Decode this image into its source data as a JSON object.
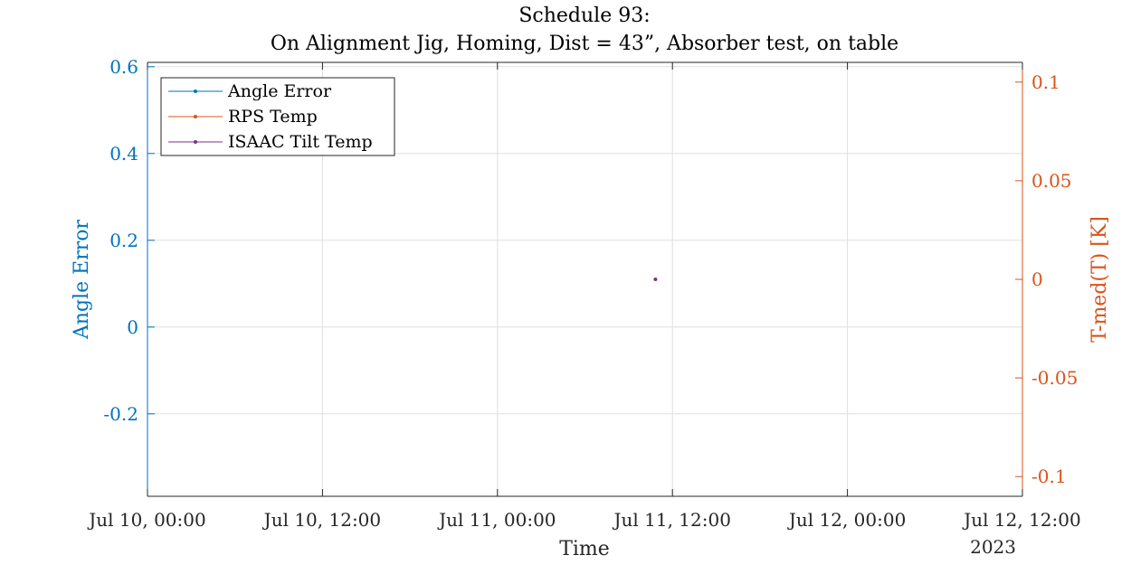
{
  "chart_data": {
    "type": "line",
    "title": [
      "Schedule 93:",
      "On Alignment Jig, Homing, Dist = 43”, Absorber test, on table"
    ],
    "xlabel": "Time",
    "x_secondary_label": "2023",
    "x_range": [
      "2023-07-10T00:00",
      "2023-07-12T12:00"
    ],
    "x_ticks": [
      "2023-07-10T00:00",
      "2023-07-10T12:00",
      "2023-07-11T00:00",
      "2023-07-11T12:00",
      "2023-07-12T00:00",
      "2023-07-12T12:00"
    ],
    "x_tick_labels": [
      "Jul 10, 00:00",
      "Jul 10, 12:00",
      "Jul 11, 00:00",
      "Jul 11, 12:00",
      "Jul 12, 00:00",
      "Jul 12, 12:00"
    ],
    "y_left": {
      "label": "Angle Error",
      "range": [
        -0.39,
        0.61
      ],
      "ticks": [
        -0.2,
        0,
        0.2,
        0.4,
        0.6
      ],
      "tick_labels": [
        "-0.2",
        "0",
        "0.2",
        "0.4",
        "0.6"
      ],
      "color": "#0072BD"
    },
    "y_right": {
      "label": "T-med(T) [K]",
      "range": [
        -0.11,
        0.11
      ],
      "ticks": [
        -0.1,
        -0.05,
        0,
        0.05,
        0.1
      ],
      "tick_labels": [
        "-0.1",
        "-0.05",
        "0",
        "0.05",
        "0.1"
      ],
      "color": "#D95319"
    },
    "grid": true,
    "legend_position": "top-left",
    "series": [
      {
        "name": "Angle Error",
        "axis": "left",
        "color": "#0072BD",
        "points": []
      },
      {
        "name": "RPS Temp",
        "axis": "right",
        "color": "#D95319",
        "points": []
      },
      {
        "name": "ISAAC Tilt Temp",
        "axis": "right",
        "color": "#7E2F8E",
        "points": [
          {
            "x": "2023-07-11T10:50",
            "y": 0
          }
        ]
      }
    ]
  }
}
